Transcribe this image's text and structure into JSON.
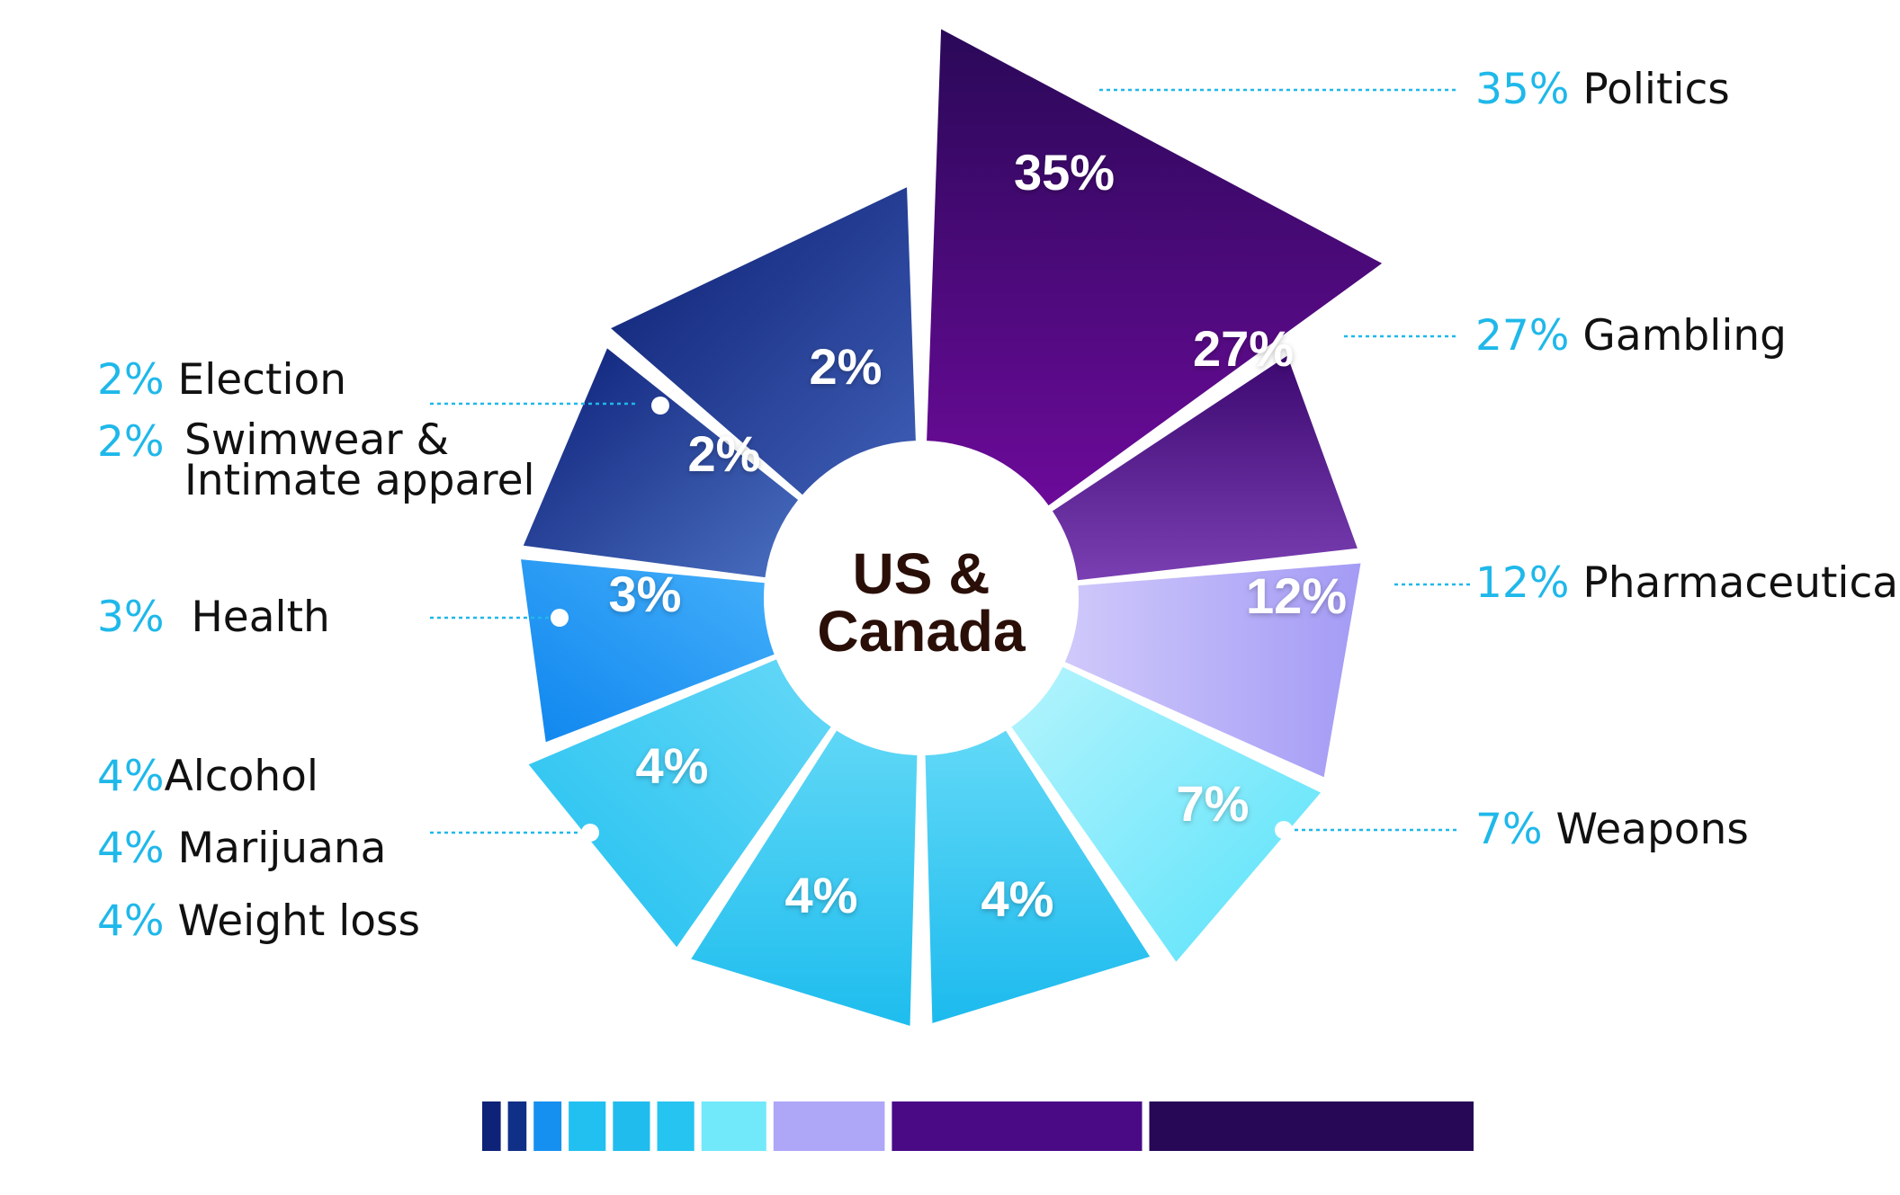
{
  "chart_data": {
    "type": "pie",
    "title": "US & Canada",
    "center_line1": "US &",
    "center_line2": "Canada",
    "slices": [
      {
        "label": "Politics",
        "value": 35,
        "text": "35%",
        "color": "#260856"
      },
      {
        "label": "Gambling",
        "value": 27,
        "text": "27%",
        "color": "#4a0a86"
      },
      {
        "label": "Pharmaceutical",
        "value": 12,
        "text": "12%",
        "color": "#aea6f7"
      },
      {
        "label": "Weapons",
        "value": 7,
        "text": "7%",
        "color": "#72e9fb"
      },
      {
        "label": "Weight loss",
        "value": 4,
        "text": "4%",
        "color": "#1fbdee"
      },
      {
        "label": "Marijuana",
        "value": 4,
        "text": "4%",
        "color": "#22c0f0"
      },
      {
        "label": "Alcohol",
        "value": 4,
        "text": "4%",
        "color": "#25c2f0"
      },
      {
        "label": "Health",
        "value": 3,
        "text": "3%",
        "color": "#1690f0"
      },
      {
        "label": "Swimwear & Intimate apparel",
        "value": 2,
        "text": "2%",
        "color": "#102f86"
      },
      {
        "label": "Election",
        "value": 2,
        "text": "2%",
        "color": "#0e2278"
      }
    ],
    "legend_right": [
      {
        "pct": "35%",
        "label": "Politics"
      },
      {
        "pct": "27%",
        "label": "Gambling"
      },
      {
        "pct": "12%",
        "label": "Pharmaceutical"
      },
      {
        "pct": "7%",
        "label": "Weapons"
      }
    ],
    "legend_left": {
      "election": {
        "pct": "2%",
        "label": "Election"
      },
      "swimwear": {
        "pct": "2%",
        "label_line1": "Swimwear &",
        "label_line2": "Intimate apparel"
      },
      "health": {
        "pct": "3%",
        "label": "Health"
      },
      "alcohol": {
        "pct": "4%",
        "label": "Alcohol"
      },
      "marijuana": {
        "pct": "4%",
        "label": "Marijuana"
      },
      "weightloss": {
        "pct": "4%",
        "label": "Weight loss"
      }
    },
    "colors": {
      "accent": "#1fb8ea",
      "center_text": "#2a0f08",
      "guide_line": "#1fb8ea"
    }
  }
}
